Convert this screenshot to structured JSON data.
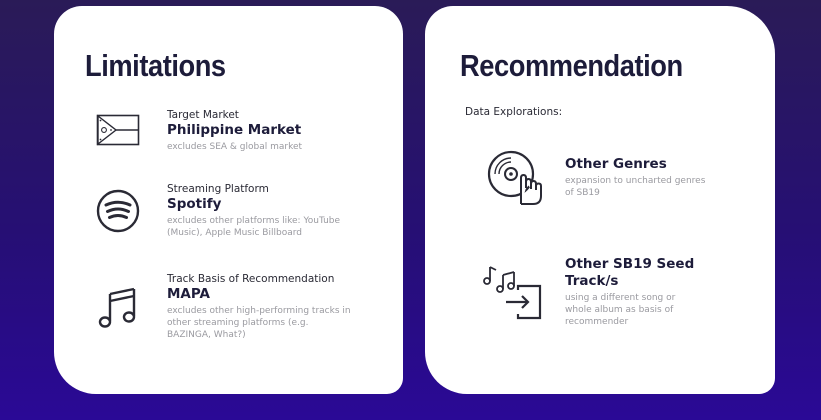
{
  "limitations": {
    "title": "Limitations",
    "items": [
      {
        "icon": "philippine-flag-icon",
        "label": "Target Market",
        "value": "Philippine Market",
        "note": "excludes SEA & global market"
      },
      {
        "icon": "spotify-logo-icon",
        "label": "Streaming Platform",
        "value": "Spotify",
        "note": "excludes other platforms like: YouTube (Music), Apple Music Billboard"
      },
      {
        "icon": "music-note-icon",
        "label": "Track Basis of Recommendation",
        "value": "MAPA",
        "note": "excludes other high-performing tracks in other streaming platforms (e.g. BAZINGA, What?)"
      }
    ]
  },
  "recommendation": {
    "title": "Recommendation",
    "subtitle": "Data Explorations:",
    "items": [
      {
        "icon": "vinyl-record-hand-icon",
        "value": "Other Genres",
        "note": "expansion to uncharted genres of SB19"
      },
      {
        "icon": "music-notes-import-icon",
        "value": "Other SB19 Seed Track/s",
        "note": "using a different song or whole album as basis of recommender"
      }
    ]
  },
  "colors": {
    "background_top": "#2a1b57",
    "background_bottom": "#2a0996",
    "card": "#ffffff",
    "title": "#1d1c3a",
    "note": "#9a9aa0"
  }
}
